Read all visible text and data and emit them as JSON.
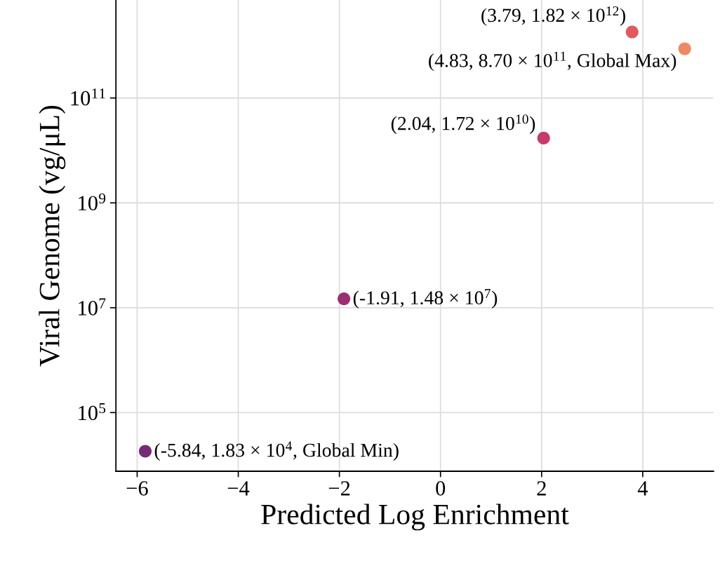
{
  "chart_data": {
    "type": "scatter",
    "xlabel": "Predicted Log Enrichment",
    "ylabel": "Viral Genome (vg/μL)",
    "x": [
      -5.84,
      -1.91,
      2.04,
      3.79,
      4.83
    ],
    "values": [
      18300,
      14800000,
      17200000000,
      1820000000000,
      870000000000
    ],
    "colors": [
      "#772a74",
      "#9c2e73",
      "#c83a68",
      "#e05a5a",
      "#ee8a62"
    ],
    "marker": "circle",
    "log": "y",
    "grid": true,
    "xlim": [
      -6.42,
      5.4
    ],
    "xticks": [
      -6,
      -4,
      -2,
      0,
      2,
      4
    ],
    "ylim": [
      7600,
      7400000000000
    ],
    "yticks": [
      {
        "value": 100000,
        "label": "10$^{5}$"
      },
      {
        "value": 10000000,
        "label": "10$^{7}$"
      },
      {
        "value": 1000000000,
        "label": "10$^{9}$"
      },
      {
        "value": 100000000000,
        "label": "10$^{11}$"
      }
    ],
    "annotations": [
      {
        "text": "(-5.84, 1.83 × 10$^{4}$, Global Min)",
        "x": -5.84,
        "y": 18300
      },
      {
        "text": "(-1.91, 1.48 × 10$^{7}$)",
        "x": -1.91,
        "y": 14800000
      },
      {
        "text": "(2.04, 1.72 × 10$^{10}$)",
        "x": 2.04,
        "y": 17200000000
      },
      {
        "text": "(3.79, 1.82 × 10$^{12}$)",
        "x": 3.79,
        "y": 1820000000000
      },
      {
        "text": "(4.83, 8.70 × 10$^{11}$, Global Max)",
        "x": 4.83,
        "y": 870000000000
      }
    ]
  }
}
